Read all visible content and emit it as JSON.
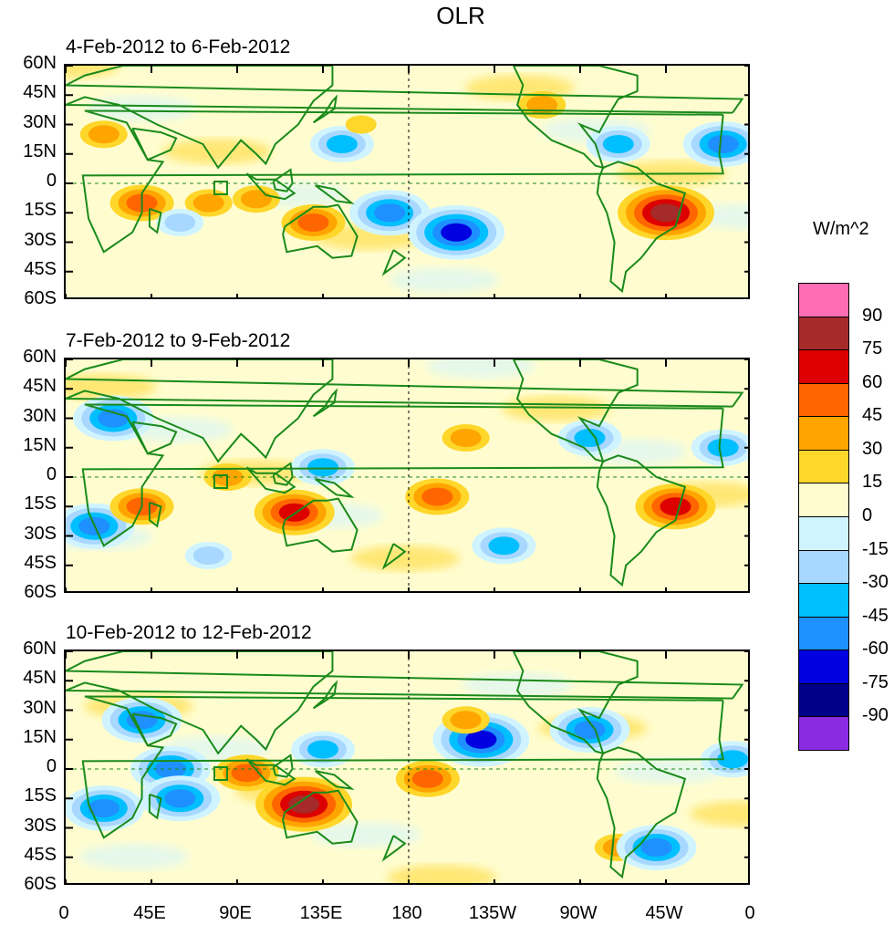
{
  "title": "OLR",
  "units": "W/m^2",
  "panels": [
    {
      "label": "4-Feb-2012 to 6-Feb-2012"
    },
    {
      "label": "7-Feb-2012 to 9-Feb-2012"
    },
    {
      "label": "10-Feb-2012 to 12-Feb-2012"
    }
  ],
  "lat_labels": [
    "60N",
    "45N",
    "30N",
    "15N",
    "0",
    "15S",
    "30S",
    "45S",
    "60S"
  ],
  "lon_labels": [
    "0",
    "45E",
    "90E",
    "135E",
    "180",
    "135W",
    "90W",
    "45W",
    "0"
  ],
  "colorbar": {
    "colors": [
      "#ff6eb4",
      "#a52a2a",
      "#dd0000",
      "#ff6600",
      "#ffa500",
      "#ffd62a",
      "#fffdd0",
      "#d0f4ff",
      "#a8d8ff",
      "#00bfff",
      "#1e90ff",
      "#0000e0",
      "#00008b",
      "#8a2be2"
    ],
    "labels": [
      "90",
      "75",
      "60",
      "45",
      "30",
      "15",
      "0",
      "-15",
      "-30",
      "-45",
      "-60",
      "-75",
      "-90"
    ]
  },
  "anomalies": [
    [
      {
        "lon": 40,
        "lat": -10,
        "v": 45
      },
      {
        "lon": 75,
        "lat": -10,
        "v": 30
      },
      {
        "lon": 100,
        "lat": -8,
        "v": 30
      },
      {
        "lon": 130,
        "lat": -20,
        "v": 45
      },
      {
        "lon": 170,
        "lat": -15,
        "v": -60
      },
      {
        "lon": 145,
        "lat": 20,
        "v": -45
      },
      {
        "lon": 155,
        "lat": 30,
        "v": 15
      },
      {
        "lon": 205,
        "lat": -25,
        "v": -75
      },
      {
        "lon": 250,
        "lat": 40,
        "v": 30
      },
      {
        "lon": 315,
        "lat": -15,
        "v": 75
      },
      {
        "lon": 345,
        "lat": 20,
        "v": -60
      },
      {
        "lon": 290,
        "lat": 20,
        "v": -45
      },
      {
        "lon": 60,
        "lat": -20,
        "v": -30
      },
      {
        "lon": 20,
        "lat": 25,
        "v": 30
      }
    ],
    [
      {
        "lon": 25,
        "lat": 30,
        "v": -60
      },
      {
        "lon": 15,
        "lat": -25,
        "v": -60
      },
      {
        "lon": 40,
        "lat": -15,
        "v": 45
      },
      {
        "lon": 120,
        "lat": -18,
        "v": 60
      },
      {
        "lon": 85,
        "lat": 0,
        "v": 30
      },
      {
        "lon": 135,
        "lat": 5,
        "v": -45
      },
      {
        "lon": 195,
        "lat": -10,
        "v": 45
      },
      {
        "lon": 210,
        "lat": 20,
        "v": 30
      },
      {
        "lon": 275,
        "lat": 20,
        "v": -45
      },
      {
        "lon": 320,
        "lat": -15,
        "v": 60
      },
      {
        "lon": 230,
        "lat": -35,
        "v": -45
      },
      {
        "lon": 345,
        "lat": 15,
        "v": -45
      },
      {
        "lon": 75,
        "lat": -40,
        "v": -30
      }
    ],
    [
      {
        "lon": 40,
        "lat": 25,
        "v": -60
      },
      {
        "lon": 20,
        "lat": -20,
        "v": -60
      },
      {
        "lon": 55,
        "lat": 0,
        "v": -60
      },
      {
        "lon": 125,
        "lat": -18,
        "v": 75
      },
      {
        "lon": 95,
        "lat": -2,
        "v": 45
      },
      {
        "lon": 135,
        "lat": 10,
        "v": -45
      },
      {
        "lon": 190,
        "lat": -5,
        "v": 45
      },
      {
        "lon": 218,
        "lat": 15,
        "v": -75
      },
      {
        "lon": 210,
        "lat": 25,
        "v": 30
      },
      {
        "lon": 275,
        "lat": 20,
        "v": -60
      },
      {
        "lon": 290,
        "lat": -40,
        "v": 30
      },
      {
        "lon": 310,
        "lat": -40,
        "v": -60
      },
      {
        "lon": 350,
        "lat": 5,
        "v": -45
      },
      {
        "lon": 60,
        "lat": -15,
        "v": -60
      }
    ]
  ]
}
